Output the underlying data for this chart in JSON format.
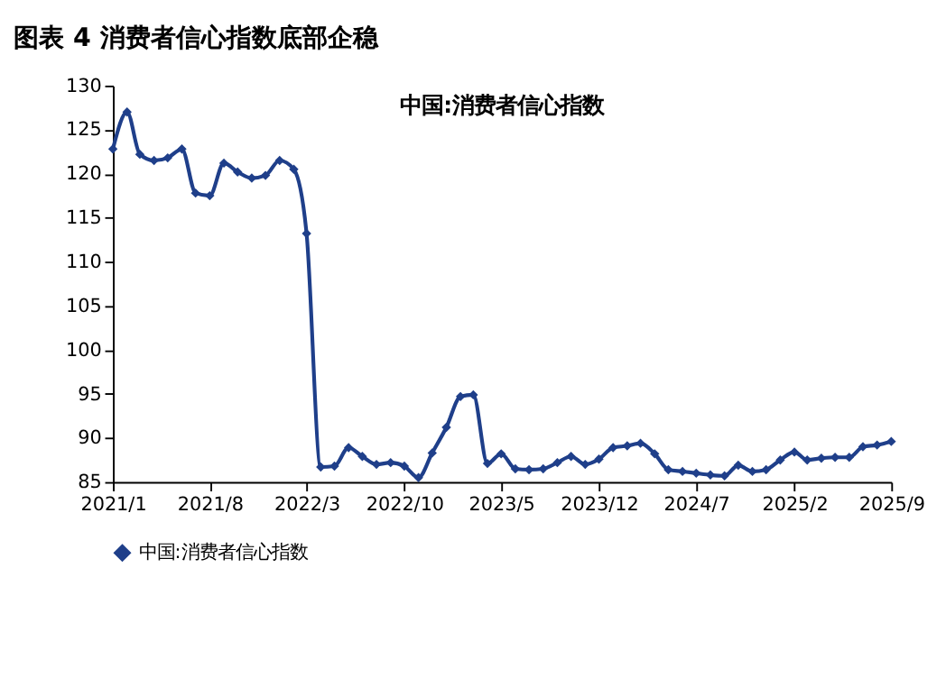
{
  "chart_data": {
    "type": "line",
    "title": "图表 4  消费者信心指数底部企稳",
    "subtitle": "中国:消费者信心指数",
    "x": [
      "2021-01",
      "2021-02",
      "2021-03",
      "2021-04",
      "2021-05",
      "2021-06",
      "2021-07",
      "2021-08",
      "2021-09",
      "2021-10",
      "2021-11",
      "2021-12",
      "2022-01",
      "2022-02",
      "2022-03",
      "2022-04",
      "2022-05",
      "2022-06",
      "2022-07",
      "2022-08",
      "2022-09",
      "2022-10",
      "2022-11",
      "2022-12",
      "2023-01",
      "2023-02",
      "2023-03",
      "2023-04",
      "2023-05",
      "2023-06",
      "2023-07",
      "2023-08",
      "2023-09",
      "2023-10",
      "2023-11",
      "2023-12",
      "2024-01",
      "2024-02",
      "2024-03",
      "2024-04",
      "2024-05",
      "2024-06",
      "2024-07",
      "2024-08",
      "2024-09",
      "2024-10",
      "2024-11",
      "2024-12",
      "2025-01",
      "2025-02",
      "2025-03",
      "2025-04",
      "2025-05",
      "2025-06",
      "2025-07",
      "2025-08",
      "2025-09"
    ],
    "series": [
      {
        "name": "中国:消费者信心指数",
        "color": "#1f3f8a",
        "values": [
          122.8,
          127.0,
          122.2,
          121.5,
          121.8,
          122.8,
          117.8,
          117.5,
          121.2,
          120.2,
          119.5,
          119.8,
          121.5,
          120.5,
          113.2,
          86.7,
          86.8,
          88.9,
          87.9,
          87.0,
          87.2,
          86.8,
          85.5,
          88.3,
          91.2,
          94.7,
          94.9,
          87.1,
          88.2,
          86.5,
          86.4,
          86.5,
          87.2,
          87.9,
          87.0,
          87.6,
          88.9,
          89.1,
          89.4,
          88.2,
          86.4,
          86.2,
          86.0,
          85.8,
          85.7,
          86.9,
          86.2,
          86.4,
          87.5,
          88.4,
          87.5,
          87.7,
          87.8,
          87.8,
          89.0,
          89.2,
          89.6
        ]
      }
    ],
    "xlim": [
      "2021-01",
      "2025-09"
    ],
    "xticks": [
      {
        "value": "2021-01",
        "label": "2021/1"
      },
      {
        "value": "2021-08",
        "label": "2021/8"
      },
      {
        "value": "2022-03",
        "label": "2022/3"
      },
      {
        "value": "2022-10",
        "label": "2022/10"
      },
      {
        "value": "2023-05",
        "label": "2023/5"
      },
      {
        "value": "2023-12",
        "label": "2023/12"
      },
      {
        "value": "2024-07",
        "label": "2024/7"
      },
      {
        "value": "2025-02",
        "label": "2025/2"
      },
      {
        "value": "2025-09",
        "label": "2025/9"
      }
    ],
    "ylim": [
      85,
      130
    ],
    "yticks": [
      85,
      90,
      95,
      100,
      105,
      110,
      115,
      120,
      125,
      130
    ],
    "grid": false,
    "legend": "bottom",
    "marker": "diamond",
    "line_style": "solid"
  }
}
